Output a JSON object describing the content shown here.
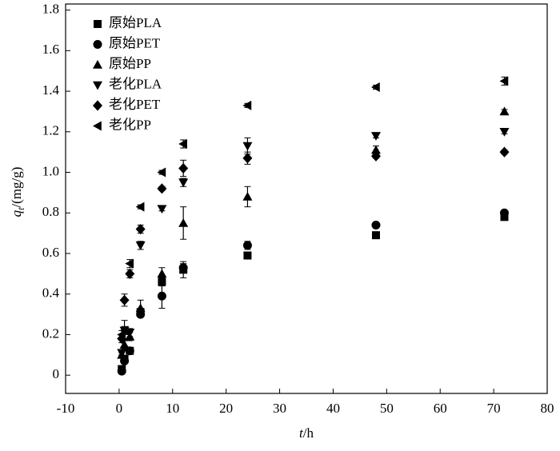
{
  "chart_data": {
    "type": "scatter",
    "xlabel": [
      "t",
      "/h"
    ],
    "ylabel": [
      "q",
      "t",
      "/(mg/g)"
    ],
    "xlim": [
      -10,
      80
    ],
    "xticks": [
      -10,
      0,
      10,
      20,
      30,
      40,
      50,
      60,
      70,
      80
    ],
    "ylim": [
      -0.09,
      1.83
    ],
    "yticks": [
      0,
      0.2,
      0.4,
      0.6,
      0.8,
      {
        "value": 1,
        "label": "1.0"
      },
      1.2,
      1.4,
      1.6,
      1.8
    ],
    "legend": "upper-left",
    "x": [
      0.5,
      1,
      2,
      4,
      8,
      12,
      24,
      48,
      72
    ],
    "series": [
      {
        "name": "原始PLA",
        "marker": "square",
        "color": "#000000",
        "values": [
          0.03,
          0.08,
          0.12,
          0.31,
          0.46,
          0.52,
          0.59,
          0.69,
          0.78
        ],
        "errors": [
          0.01,
          0.01,
          0.01,
          0.02,
          0.02,
          0.04,
          0.01,
          0.01,
          0.01
        ]
      },
      {
        "name": "原始PET",
        "marker": "circle",
        "color": "#000000",
        "values": [
          0.02,
          0.07,
          0.12,
          0.3,
          0.39,
          0.53,
          0.64,
          0.74,
          0.8
        ],
        "errors": [
          0.01,
          0.01,
          0.01,
          0.01,
          0.06,
          0.02,
          0.02,
          0.01,
          0.01
        ]
      },
      {
        "name": "原始PP",
        "marker": "triangle-up",
        "color": "#000000",
        "values": [
          0.1,
          0.15,
          0.19,
          0.33,
          0.5,
          0.75,
          0.88,
          1.11,
          1.3
        ],
        "errors": [
          0.01,
          0.02,
          0.02,
          0.04,
          0.03,
          0.08,
          0.05,
          0.02,
          0.01
        ]
      },
      {
        "name": "老化PLA",
        "marker": "triangle-down",
        "color": "#000000",
        "values": [
          0.11,
          0.22,
          0.21,
          0.64,
          0.82,
          0.95,
          1.13,
          1.18,
          1.2
        ],
        "errors": [
          0.01,
          0.05,
          0.02,
          0.02,
          0.01,
          0.02,
          0.04,
          0.01,
          0.01
        ]
      },
      {
        "name": "老化PET",
        "marker": "diamond",
        "color": "#000000",
        "values": [
          0.18,
          0.37,
          0.5,
          0.72,
          0.92,
          1.02,
          1.07,
          1.08,
          1.1
        ],
        "errors": [
          0.02,
          0.03,
          0.02,
          0.02,
          0.01,
          0.04,
          0.03,
          0.01,
          0.01
        ]
      },
      {
        "name": "老化PP",
        "marker": "triangle-left",
        "color": "#000000",
        "values": [
          0.2,
          0.22,
          0.55,
          0.83,
          1.0,
          1.14,
          1.33,
          1.42,
          1.45
        ],
        "errors": [
          0.02,
          0.02,
          0.02,
          0.01,
          0.01,
          0.02,
          0.01,
          0.01,
          0.02
        ]
      }
    ]
  }
}
